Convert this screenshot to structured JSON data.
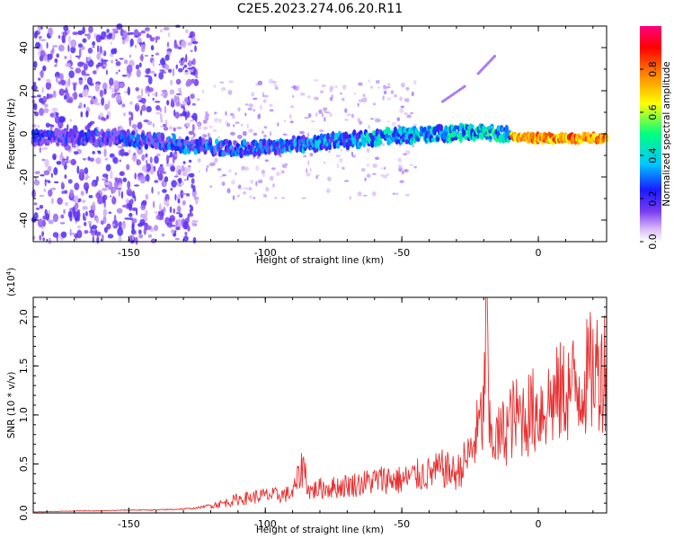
{
  "title": "C2E5.2023.274.06.20.R11",
  "chart_data": [
    {
      "id": "spectrogram",
      "type": "heatmap",
      "xlabel": "Height of straight line (km)",
      "ylabel": "Frequency (Hz)",
      "xlim": [
        -185,
        25
      ],
      "ylim": [
        -50,
        50
      ],
      "x_ticks": [
        -150,
        -100,
        -50,
        0
      ],
      "y_ticks": [
        -40,
        -20,
        0,
        20,
        40
      ],
      "tick_labels_x": [
        "-150",
        "-100",
        "-50",
        "0"
      ],
      "tick_labels_y": [
        "-40",
        "-20",
        "0",
        "20",
        "40"
      ],
      "colorbar": {
        "label": "Normalized spectral amplitude",
        "range": [
          0,
          1
        ],
        "ticks": [
          0.0,
          0.2,
          0.4,
          0.6,
          0.8
        ],
        "tick_labels": [
          "0.0",
          "0.2",
          "0.4",
          "0.6",
          "0.8"
        ],
        "colors": [
          "#ffffff",
          "#d8b8f8",
          "#7a3cf0",
          "#1a1aff",
          "#00c8ff",
          "#00ff80",
          "#ffff00",
          "#ff8000",
          "#ff0000",
          "#ff0080"
        ]
      },
      "ridge": {
        "description_points": [
          [
            -180,
            -2
          ],
          [
            -150,
            -2
          ],
          [
            -130,
            -5
          ],
          [
            -110,
            -7
          ],
          [
            -100,
            -6
          ],
          [
            -80,
            -4
          ],
          [
            -60,
            -2
          ],
          [
            -40,
            0
          ],
          [
            -20,
            1
          ],
          [
            -10,
            -1
          ],
          [
            0,
            -2
          ],
          [
            25,
            -2
          ]
        ],
        "peak_amplitude_region_x": [
          -10,
          25
        ]
      },
      "secondary_traces": [
        {
          "x": [
            -35,
            -27
          ],
          "y": [
            15,
            22
          ]
        },
        {
          "x": [
            -22,
            -16
          ],
          "y": [
            28,
            36
          ]
        }
      ]
    },
    {
      "id": "snr",
      "type": "line",
      "xlabel": "Height of straight line (km)",
      "ylabel": "SNR (10 * v/v)",
      "scale_label": "(x10",
      "scale_exp": "4",
      "scale_close": ")",
      "xlim": [
        -185,
        25
      ],
      "ylim": [
        0,
        2.2
      ],
      "x_ticks": [
        -150,
        -100,
        -50,
        0
      ],
      "y_ticks": [
        0,
        0.5,
        1.0,
        1.5,
        2.0
      ],
      "tick_labels_x": [
        "-150",
        "-100",
        "-50",
        "0"
      ],
      "tick_labels_y": [
        "0.0",
        "0.5",
        "1.0",
        "1.5",
        "2.0"
      ],
      "color": "#e83030",
      "series": [
        {
          "x": [
            -185,
            -170,
            -160,
            -150,
            -140,
            -130,
            -125,
            -120,
            -115,
            -110,
            -105,
            -100,
            -95,
            -90,
            -86,
            -84,
            -80,
            -75,
            -70,
            -65,
            -60,
            -55,
            -50,
            -45,
            -40,
            -35,
            -30,
            -25,
            -22,
            -20,
            -19,
            -18,
            -15,
            -12,
            -10,
            -5,
            0,
            5,
            10,
            15,
            20,
            25
          ],
          "values": [
            0.01,
            0.02,
            0.02,
            0.03,
            0.03,
            0.04,
            0.05,
            0.08,
            0.1,
            0.14,
            0.16,
            0.18,
            0.18,
            0.2,
            0.5,
            0.22,
            0.25,
            0.26,
            0.28,
            0.3,
            0.33,
            0.35,
            0.33,
            0.38,
            0.4,
            0.45,
            0.4,
            0.6,
            0.85,
            1.0,
            2.2,
            0.8,
            0.75,
            0.85,
            0.95,
            1.0,
            1.05,
            1.15,
            1.25,
            1.3,
            1.45,
            1.5
          ]
        }
      ]
    }
  ]
}
